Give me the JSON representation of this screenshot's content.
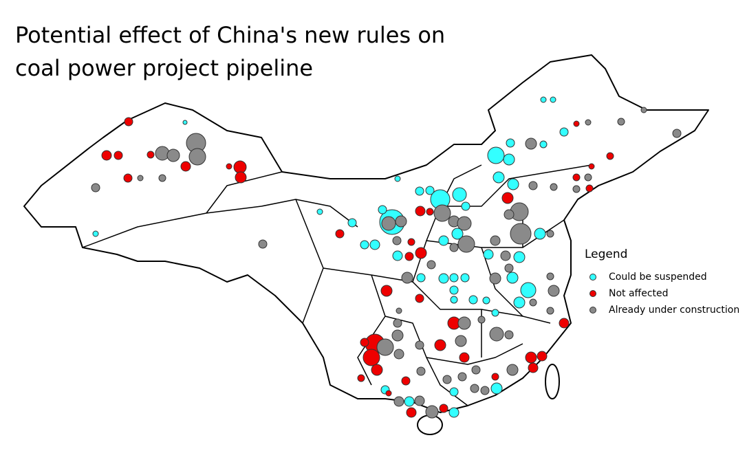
{
  "title": [
    "Potential effect of China's new rules on",
    "coal power project pipeline"
  ],
  "legend": {
    "title": "Legend",
    "items": [
      {
        "label": "Could be suspended",
        "color": "#33ffff"
      },
      {
        "label": "Not affected",
        "color": "#ee0000"
      },
      {
        "label": "Already under construction",
        "color": "#8a8a8a"
      }
    ]
  }
}
